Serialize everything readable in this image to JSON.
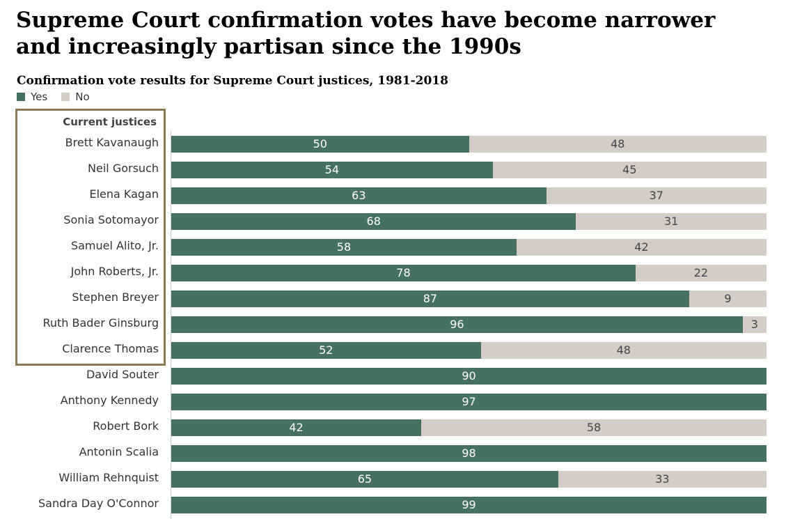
{
  "chart_data": {
    "type": "bar",
    "orientation": "horizontal",
    "stacked": true,
    "title": "Supreme Court confirmation votes have become narrower and increasingly partisan since the 1990s",
    "title_lines": [
      "Supreme Court confirmation votes have become narrower",
      "and increasingly partisan since the 1990s"
    ],
    "subtitle": "Confirmation vote results for Supreme Court justices, 1981-2018",
    "group_label": "Current justices",
    "xlim": [
      0,
      100
    ],
    "legend": [
      {
        "name": "Yes",
        "color": "#46705f"
      },
      {
        "name": "No",
        "color": "#d3cdc6"
      }
    ],
    "categories": [
      "Brett Kavanaugh",
      "Neil Gorsuch",
      "Elena Kagan",
      "Sonia Sotomayor",
      "Samuel Alito, Jr.",
      "John Roberts, Jr.",
      "Stephen Breyer",
      "Ruth Bader Ginsburg",
      "Clarence Thomas",
      "David Souter",
      "Anthony Kennedy",
      "Robert Bork",
      "Antonin Scalia",
      "William Rehnquist",
      "Sandra Day O'Connor"
    ],
    "current_justices_count": 9,
    "series": [
      {
        "name": "Yes",
        "values": [
          50,
          54,
          63,
          68,
          58,
          78,
          87,
          96,
          52,
          90,
          97,
          42,
          98,
          65,
          99
        ]
      },
      {
        "name": "No",
        "values": [
          48,
          45,
          37,
          31,
          42,
          22,
          9,
          3,
          48,
          0,
          0,
          58,
          0,
          33,
          0
        ]
      }
    ]
  }
}
